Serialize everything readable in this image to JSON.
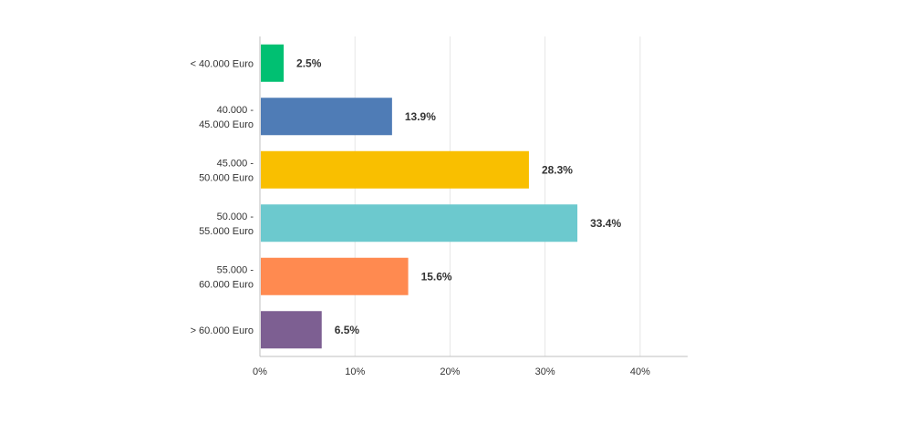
{
  "chart_data": {
    "type": "bar",
    "orientation": "horizontal",
    "categories": [
      [
        "< 40.000 Euro"
      ],
      [
        "40.000 -",
        "45.000 Euro"
      ],
      [
        "45.000 -",
        "50.000 Euro"
      ],
      [
        "50.000 -",
        "55.000 Euro"
      ],
      [
        "55.000 -",
        "60.000 Euro"
      ],
      [
        "> 60.000 Euro"
      ]
    ],
    "values": [
      2.5,
      13.9,
      28.3,
      33.4,
      15.6,
      6.5
    ],
    "value_labels": [
      "2.5%",
      "13.9%",
      "28.3%",
      "33.4%",
      "15.6%",
      "6.5%"
    ],
    "colors": [
      "#00c072",
      "#4f7cb6",
      "#f9bf00",
      "#6cc9ce",
      "#ff8a50",
      "#7d5f92"
    ],
    "xlim": [
      0,
      45
    ],
    "xticks": [
      0,
      10,
      20,
      30,
      40
    ],
    "xtick_labels": [
      "0%",
      "10%",
      "20%",
      "30%",
      "40%"
    ],
    "grid": "vertical",
    "title": "",
    "xlabel": "",
    "ylabel": ""
  }
}
